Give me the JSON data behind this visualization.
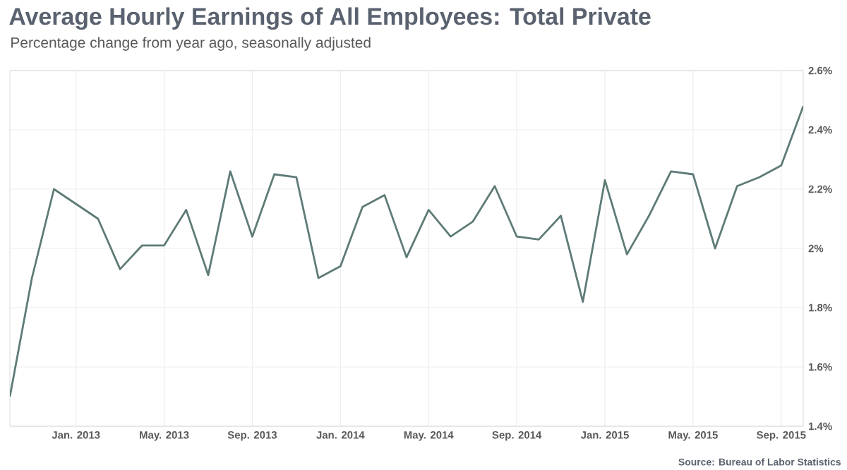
{
  "chart_data": {
    "type": "line",
    "title": "Average Hourly Earnings of All Employees: Total Private",
    "subtitle": "Percentage change from year ago, seasonally adjusted",
    "annotations": [
      "Source: Bureau of Labor Statistics"
    ],
    "x": [
      "2012-10",
      "2012-11",
      "2012-12",
      "2013-01",
      "2013-02",
      "2013-03",
      "2013-04",
      "2013-05",
      "2013-06",
      "2013-07",
      "2013-08",
      "2013-09",
      "2013-10",
      "2013-11",
      "2013-12",
      "2014-01",
      "2014-02",
      "2014-03",
      "2014-04",
      "2014-05",
      "2014-06",
      "2014-07",
      "2014-08",
      "2014-09",
      "2014-10",
      "2014-11",
      "2014-12",
      "2015-01",
      "2015-02",
      "2015-03",
      "2015-04",
      "2015-05",
      "2015-06",
      "2015-07",
      "2015-08",
      "2015-09",
      "2015-10"
    ],
    "series": [
      {
        "color": "#5e7b77",
        "values": [
          1.5,
          1.9,
          2.2,
          2.15,
          2.1,
          1.93,
          2.01,
          2.01,
          2.13,
          1.91,
          2.26,
          2.04,
          2.25,
          2.24,
          1.9,
          1.94,
          2.14,
          2.18,
          1.97,
          2.13,
          2.04,
          2.09,
          2.21,
          2.04,
          2.03,
          2.11,
          1.82,
          2.23,
          1.98,
          2.11,
          2.26,
          2.25,
          2.0,
          2.21,
          2.24,
          2.28,
          2.48
        ]
      }
    ],
    "xlim": [
      "2012-10",
      "2015-10"
    ],
    "xticks": [
      {
        "value": "2013-01",
        "label": "Jan. 2013"
      },
      {
        "value": "2013-05",
        "label": "May. 2013"
      },
      {
        "value": "2013-09",
        "label": "Sep. 2013"
      },
      {
        "value": "2014-01",
        "label": "Jan. 2014"
      },
      {
        "value": "2014-05",
        "label": "May. 2014"
      },
      {
        "value": "2014-09",
        "label": "Sep. 2014"
      },
      {
        "value": "2015-01",
        "label": "Jan. 2015"
      },
      {
        "value": "2015-05",
        "label": "May. 2015"
      },
      {
        "value": "2015-09",
        "label": "Sep. 2015"
      }
    ],
    "ylim": [
      1.4,
      2.6
    ],
    "yticks": [
      {
        "value": 1.4,
        "label": "1.4%"
      },
      {
        "value": 1.6,
        "label": "1.6%"
      },
      {
        "value": 1.8,
        "label": "1.8%"
      },
      {
        "value": 2,
        "label": "2%"
      },
      {
        "value": 2.2,
        "label": "2.2%"
      },
      {
        "value": 2.4,
        "label": "2.4%"
      },
      {
        "value": 2.6,
        "label": "2.6%"
      }
    ],
    "grid": true,
    "marker": "none",
    "line_style": "solid"
  }
}
